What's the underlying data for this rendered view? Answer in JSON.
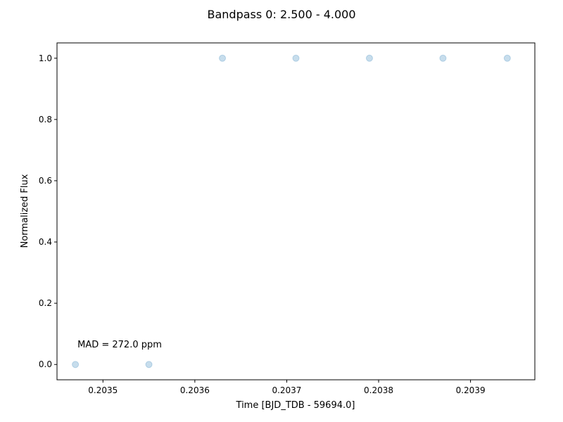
{
  "chart_data": {
    "type": "scatter",
    "title": "Bandpass 0: 2.500 - 4.000",
    "xlabel": "Time [BJD_TDB - 59694.0]",
    "ylabel": "Normalized Flux",
    "xlim": [
      0.20345,
      0.20397
    ],
    "ylim": [
      -0.05,
      1.05
    ],
    "xticks": [
      0.2035,
      0.2036,
      0.2037,
      0.2038,
      0.2039
    ],
    "xtick_labels": [
      "0.2035",
      "0.2036",
      "0.2037",
      "0.2038",
      "0.2039"
    ],
    "yticks": [
      0.0,
      0.2,
      0.4,
      0.6,
      0.8,
      1.0
    ],
    "ytick_labels": [
      "0.0",
      "0.2",
      "0.4",
      "0.6",
      "0.8",
      "1.0"
    ],
    "grid": false,
    "series": [
      {
        "color": "#1f77b4",
        "alpha": 0.25,
        "marker": "circle",
        "x": [
          0.20347,
          0.20355,
          0.20363,
          0.20371,
          0.20379,
          0.20387,
          0.20394
        ],
        "y": [
          0.0,
          0.0,
          1.0,
          1.0,
          1.0,
          1.0,
          1.0
        ]
      }
    ],
    "annotations": [
      {
        "text": "MAD = 272.0 ppm",
        "x": 0.20347,
        "y": 0.065
      }
    ]
  }
}
